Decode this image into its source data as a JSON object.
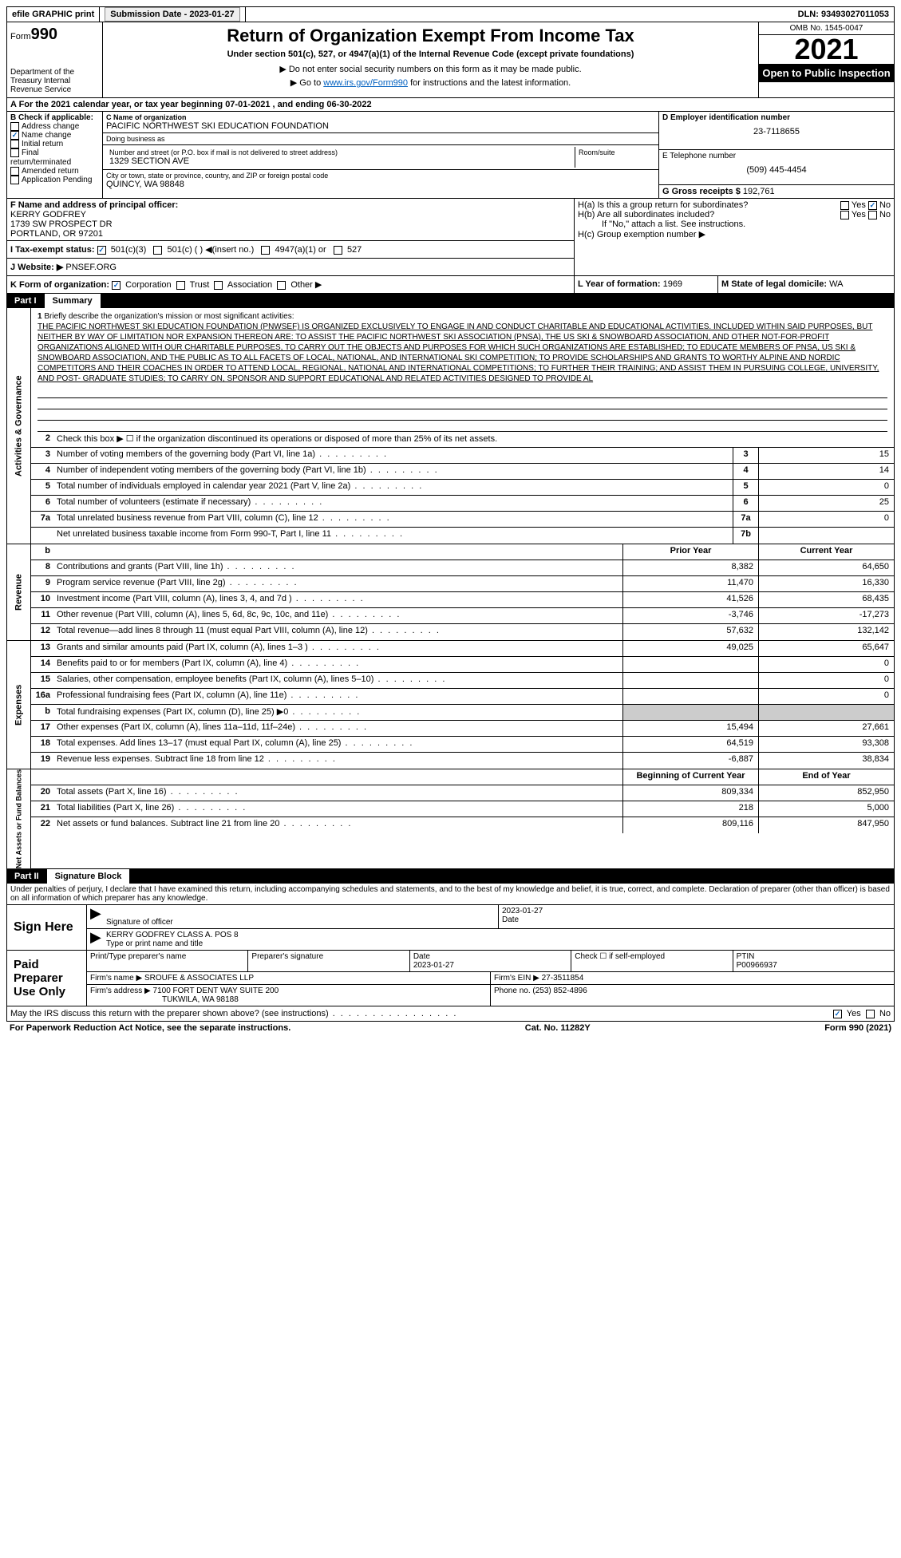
{
  "topbar": {
    "efile": "efile GRAPHIC print",
    "submission_label": "Submission Date - 2023-01-27",
    "dln": "DLN: 93493027011053"
  },
  "header": {
    "form_label": "Form",
    "form_num": "990",
    "dept": "Department of the Treasury Internal Revenue Service",
    "title": "Return of Organization Exempt From Income Tax",
    "subtitle": "Under section 501(c), 527, or 4947(a)(1) of the Internal Revenue Code (except private foundations)",
    "note1": "▶ Do not enter social security numbers on this form as it may be made public.",
    "note2_pre": "▶ Go to ",
    "note2_link": "www.irs.gov/Form990",
    "note2_post": " for instructions and the latest information.",
    "omb": "OMB No. 1545-0047",
    "year": "2021",
    "open": "Open to Public Inspection"
  },
  "section_a": "A For the 2021 calendar year, or tax year beginning 07-01-2021   , and ending 06-30-2022",
  "box_b": {
    "label": "B Check if applicable:",
    "items": [
      "Address change",
      "Name change",
      "Initial return",
      "Final return/terminated",
      "Amended return",
      "Application Pending"
    ],
    "checked_index": 1
  },
  "box_c": {
    "name_label": "C Name of organization",
    "name": "PACIFIC NORTHWEST SKI EDUCATION FOUNDATION",
    "dba_label": "Doing business as",
    "dba": "",
    "street_label": "Number and street (or P.O. box if mail is not delivered to street address)",
    "street": "1329 SECTION AVE",
    "room_label": "Room/suite",
    "room": "",
    "city_label": "City or town, state or province, country, and ZIP or foreign postal code",
    "city": "QUINCY, WA  98848"
  },
  "box_d": {
    "label": "D Employer identification number",
    "value": "23-7118655"
  },
  "box_e": {
    "label": "E Telephone number",
    "value": "(509) 445-4454"
  },
  "box_g": {
    "label": "G Gross receipts $",
    "value": "192,761"
  },
  "box_f": {
    "label": "F  Name and address of principal officer:",
    "line1": "KERRY GODFREY",
    "line2": "1739 SW PROSPECT DR",
    "line3": "PORTLAND, OR  97201"
  },
  "box_h": {
    "ha": "H(a)  Is this a group return for subordinates?",
    "hb": "H(b)  Are all subordinates included?",
    "hb_note": "If \"No,\" attach a list. See instructions.",
    "hc": "H(c)  Group exemption number ▶",
    "yes": "Yes",
    "no": "No"
  },
  "box_i": {
    "label": "I   Tax-exempt status:",
    "opts": [
      "501(c)(3)",
      "501(c) (  ) ◀(insert no.)",
      "4947(a)(1) or",
      "527"
    ]
  },
  "box_j": {
    "label": "J  Website: ▶",
    "value": "PNSEF.ORG"
  },
  "box_k": {
    "label": "K Form of organization:",
    "opts": [
      "Corporation",
      "Trust",
      "Association",
      "Other ▶"
    ]
  },
  "box_l": {
    "label": "L Year of formation:",
    "value": "1969"
  },
  "box_m": {
    "label": "M State of legal domicile:",
    "value": "WA"
  },
  "part1": {
    "num": "Part I",
    "title": "Summary"
  },
  "mission": {
    "num": "1",
    "label": "Briefly describe the organization's mission or most significant activities:",
    "text": "THE PACIFIC NORTHWEST SKI EDUCATION FOUNDATION (PNWSEF) IS ORGANIZED EXCLUSIVELY TO ENGAGE IN AND CONDUCT CHARITABLE AND EDUCATIONAL ACTIVITIES. INCLUDED WITHIN SAID PURPOSES, BUT NEITHER BY WAY OF LIMITATION NOR EXPANSION THEREON ARE: TO ASSIST THE PACIFIC NORTHWEST SKI ASSOCIATION (PNSA), THE US SKI & SNOWBOARD ASSOCIATION, AND OTHER NOT-FOR-PROFIT ORGANIZATIONS ALIGNED WITH OUR CHARITABLE PURPOSES, TO CARRY OUT THE OBJECTS AND PURPOSES FOR WHICH SUCH ORGANIZATIONS ARE ESTABLISHED; TO EDUCATE MEMBERS OF PNSA, US SKI & SNOWBOARD ASSOCIATION, AND THE PUBLIC AS TO ALL FACETS OF LOCAL, NATIONAL, AND INTERNATIONAL SKI COMPETITION; TO PROVIDE SCHOLARSHIPS AND GRANTS TO WORTHY ALPINE AND NORDIC COMPETITORS AND THEIR COACHES IN ORDER TO ATTEND LOCAL, REGIONAL, NATIONAL AND INTERNATIONAL COMPETITIONS; TO FURTHER THEIR TRAINING; AND ASSIST THEM IN PURSUING COLLEGE, UNIVERSITY, AND POST- GRADUATE STUDIES; TO CARRY ON, SPONSOR AND SUPPORT EDUCATIONAL AND RELATED ACTIVITIES DESIGNED TO PROVIDE AL"
  },
  "line2": "Check this box ▶ ☐ if the organization discontinued its operations or disposed of more than 25% of its net assets.",
  "gov_rows": [
    {
      "n": "3",
      "d": "Number of voting members of the governing body (Part VI, line 1a)",
      "nc": "3",
      "v": "15"
    },
    {
      "n": "4",
      "d": "Number of independent voting members of the governing body (Part VI, line 1b)",
      "nc": "4",
      "v": "14"
    },
    {
      "n": "5",
      "d": "Total number of individuals employed in calendar year 2021 (Part V, line 2a)",
      "nc": "5",
      "v": "0"
    },
    {
      "n": "6",
      "d": "Total number of volunteers (estimate if necessary)",
      "nc": "6",
      "v": "25"
    },
    {
      "n": "7a",
      "d": "Total unrelated business revenue from Part VIII, column (C), line 12",
      "nc": "7a",
      "v": "0"
    },
    {
      "n": "",
      "d": "Net unrelated business taxable income from Form 990-T, Part I, line 11",
      "nc": "7b",
      "v": ""
    }
  ],
  "col_hdr": {
    "b": "b",
    "prior": "Prior Year",
    "current": "Current Year"
  },
  "rev_rows": [
    {
      "n": "8",
      "d": "Contributions and grants (Part VIII, line 1h)",
      "p": "8,382",
      "c": "64,650"
    },
    {
      "n": "9",
      "d": "Program service revenue (Part VIII, line 2g)",
      "p": "11,470",
      "c": "16,330"
    },
    {
      "n": "10",
      "d": "Investment income (Part VIII, column (A), lines 3, 4, and 7d )",
      "p": "41,526",
      "c": "68,435"
    },
    {
      "n": "11",
      "d": "Other revenue (Part VIII, column (A), lines 5, 6d, 8c, 9c, 10c, and 11e)",
      "p": "-3,746",
      "c": "-17,273"
    },
    {
      "n": "12",
      "d": "Total revenue—add lines 8 through 11 (must equal Part VIII, column (A), line 12)",
      "p": "57,632",
      "c": "132,142"
    }
  ],
  "exp_rows": [
    {
      "n": "13",
      "d": "Grants and similar amounts paid (Part IX, column (A), lines 1–3 )",
      "p": "49,025",
      "c": "65,647"
    },
    {
      "n": "14",
      "d": "Benefits paid to or for members (Part IX, column (A), line 4)",
      "p": "",
      "c": "0"
    },
    {
      "n": "15",
      "d": "Salaries, other compensation, employee benefits (Part IX, column (A), lines 5–10)",
      "p": "",
      "c": "0"
    },
    {
      "n": "16a",
      "d": "Professional fundraising fees (Part IX, column (A), line 11e)",
      "p": "",
      "c": "0"
    },
    {
      "n": "b",
      "d": "Total fundraising expenses (Part IX, column (D), line 25) ▶0",
      "p": "__grey__",
      "c": "__grey__"
    },
    {
      "n": "17",
      "d": "Other expenses (Part IX, column (A), lines 11a–11d, 11f–24e)",
      "p": "15,494",
      "c": "27,661"
    },
    {
      "n": "18",
      "d": "Total expenses. Add lines 13–17 (must equal Part IX, column (A), line 25)",
      "p": "64,519",
      "c": "93,308"
    },
    {
      "n": "19",
      "d": "Revenue less expenses. Subtract line 18 from line 12",
      "p": "-6,887",
      "c": "38,834"
    }
  ],
  "net_hdr": {
    "b": "Beginning of Current Year",
    "e": "End of Year"
  },
  "net_rows": [
    {
      "n": "20",
      "d": "Total assets (Part X, line 16)",
      "p": "809,334",
      "c": "852,950"
    },
    {
      "n": "21",
      "d": "Total liabilities (Part X, line 26)",
      "p": "218",
      "c": "5,000"
    },
    {
      "n": "22",
      "d": "Net assets or fund balances. Subtract line 21 from line 20",
      "p": "809,116",
      "c": "847,950"
    }
  ],
  "side_labels": {
    "gov": "Activities & Governance",
    "rev": "Revenue",
    "exp": "Expenses",
    "net": "Net Assets or Fund Balances"
  },
  "part2": {
    "num": "Part II",
    "title": "Signature Block"
  },
  "penalties": "Under penalties of perjury, I declare that I have examined this return, including accompanying schedules and statements, and to the best of my knowledge and belief, it is true, correct, and complete. Declaration of preparer (other than officer) is based on all information of which preparer has any knowledge.",
  "sign": {
    "label": "Sign Here",
    "sig_of_officer": "Signature of officer",
    "date": "Date",
    "date_val": "2023-01-27",
    "name": "KERRY GODFREY CLASS A. POS 8",
    "type_label": "Type or print name and title"
  },
  "paid": {
    "label": "Paid Preparer Use Only",
    "print_name": "Print/Type preparer's name",
    "prep_sig": "Preparer's signature",
    "date_label": "Date",
    "date": "2023-01-27",
    "check_label": "Check ☐ if self-employed",
    "ptin_label": "PTIN",
    "ptin": "P00966937",
    "firm_name_label": "Firm's name      ▶",
    "firm_name": "SROUFE & ASSOCIATES LLP",
    "firm_ein_label": "Firm's EIN ▶",
    "firm_ein": "27-3511854",
    "firm_addr_label": "Firm's address ▶",
    "firm_addr1": "7100 FORT DENT WAY SUITE 200",
    "firm_addr2": "TUKWILA, WA  98188",
    "phone_label": "Phone no.",
    "phone": "(253) 852-4896"
  },
  "discuss": "May the IRS discuss this return with the preparer shown above? (see instructions)",
  "footer": {
    "left": "For Paperwork Reduction Act Notice, see the separate instructions.",
    "mid": "Cat. No. 11282Y",
    "right": "Form 990 (2021)"
  }
}
